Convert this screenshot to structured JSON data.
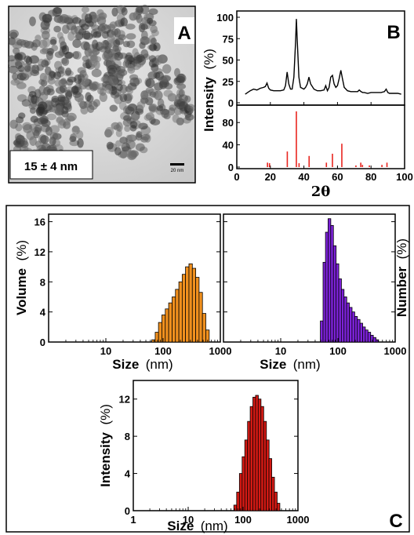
{
  "panel_labels": {
    "a": "A",
    "b": "B",
    "c": "C"
  },
  "tem": {
    "size_label": "15 ± 4 nm",
    "scalebar_label": "20 nm"
  },
  "chart_data": [
    {
      "id": "xrd",
      "type": "line",
      "xlabel": "2θ",
      "ylabel_main": "Intensity",
      "ylabel_unit": "(%)",
      "xlim": [
        0,
        100
      ],
      "xticks": [
        0,
        20,
        40,
        60,
        80,
        100
      ],
      "upper": {
        "ylim": [
          0,
          100
        ],
        "yticks": [
          0,
          25,
          50,
          75,
          100
        ],
        "x": [
          5,
          8,
          10,
          12,
          14,
          16,
          17,
          18,
          19,
          20,
          22,
          24,
          26,
          28,
          29,
          30,
          31,
          32,
          33,
          34,
          35,
          35.5,
          36,
          37,
          38,
          40,
          41,
          42,
          43,
          44,
          46,
          48,
          50,
          52,
          53,
          54,
          55,
          56,
          57,
          58,
          59,
          60,
          61,
          62,
          63,
          64,
          66,
          68,
          70,
          72,
          73,
          74,
          75,
          76,
          78,
          80,
          82,
          84,
          86,
          88,
          89,
          90,
          91,
          92,
          94,
          96,
          98
        ],
        "y": [
          10,
          14,
          16,
          15,
          17,
          18,
          19,
          23,
          17,
          15,
          14,
          14,
          14,
          15,
          20,
          36,
          22,
          16,
          16,
          30,
          70,
          98,
          75,
          30,
          18,
          16,
          18,
          22,
          30,
          22,
          16,
          14,
          14,
          15,
          20,
          14,
          18,
          30,
          32,
          22,
          18,
          20,
          28,
          38,
          28,
          18,
          14,
          13,
          13,
          13,
          15,
          13,
          12,
          12,
          11,
          12,
          12,
          12,
          12,
          13,
          16,
          12,
          11,
          11,
          11,
          11,
          10
        ]
      },
      "lower": {
        "ylim": [
          0,
          100
        ],
        "yticks": [
          0,
          40,
          80
        ],
        "peaks": [
          {
            "x": 18.3,
            "y": 8
          },
          {
            "x": 19.5,
            "y": 7
          },
          {
            "x": 30.1,
            "y": 28
          },
          {
            "x": 35.5,
            "y": 100
          },
          {
            "x": 37.1,
            "y": 7
          },
          {
            "x": 43.1,
            "y": 20
          },
          {
            "x": 53.4,
            "y": 8
          },
          {
            "x": 57.0,
            "y": 24
          },
          {
            "x": 62.6,
            "y": 42
          },
          {
            "x": 71.0,
            "y": 3
          },
          {
            "x": 73.9,
            "y": 8
          },
          {
            "x": 74.9,
            "y": 4
          },
          {
            "x": 79.0,
            "y": 3
          },
          {
            "x": 86.5,
            "y": 4
          },
          {
            "x": 89.5,
            "y": 8
          }
        ],
        "color": "#e8251f"
      }
    },
    {
      "id": "dls-volume",
      "type": "bar",
      "xscale": "log",
      "xlabel": "Size",
      "xlabel_unit": "(nm)",
      "ylabel": "Volume",
      "ylabel_unit": "(%)",
      "xlim": [
        1,
        1000
      ],
      "xticks": [
        10,
        100,
        1000
      ],
      "xtick_labels": [
        "10",
        "100",
        "1000"
      ],
      "ylim": [
        0,
        17
      ],
      "yticks": [
        0,
        4,
        8,
        12,
        16
      ],
      "color": "#f0901e",
      "bins": [
        {
          "x": 68,
          "y": 0.3
        },
        {
          "x": 78,
          "y": 1.3
        },
        {
          "x": 89,
          "y": 2.6
        },
        {
          "x": 102,
          "y": 3.6
        },
        {
          "x": 117,
          "y": 4.4
        },
        {
          "x": 134,
          "y": 5.2
        },
        {
          "x": 154,
          "y": 6.0
        },
        {
          "x": 176,
          "y": 7.0
        },
        {
          "x": 202,
          "y": 8.0
        },
        {
          "x": 231,
          "y": 9.0
        },
        {
          "x": 264,
          "y": 10.0
        },
        {
          "x": 303,
          "y": 10.4
        },
        {
          "x": 347,
          "y": 9.8
        },
        {
          "x": 397,
          "y": 8.6
        },
        {
          "x": 455,
          "y": 6.6
        },
        {
          "x": 521,
          "y": 3.8
        },
        {
          "x": 597,
          "y": 1.6
        }
      ]
    },
    {
      "id": "dls-number",
      "type": "bar",
      "xscale": "log",
      "xlabel": "Size",
      "xlabel_unit": "(nm)",
      "ylabel": "Number",
      "ylabel_unit": "(%)",
      "xlim": [
        1,
        1000
      ],
      "xticks": [
        10,
        100,
        1000
      ],
      "xtick_labels": [
        "10",
        "100",
        "1000"
      ],
      "ylim": [
        0,
        17
      ],
      "yticks": [
        0,
        4,
        8,
        12,
        16
      ],
      "color": "#7d22d9",
      "bins": [
        {
          "x": 52,
          "y": 2.8
        },
        {
          "x": 58,
          "y": 10.6
        },
        {
          "x": 64,
          "y": 14.6
        },
        {
          "x": 71,
          "y": 16.4
        },
        {
          "x": 79,
          "y": 15.5
        },
        {
          "x": 88,
          "y": 12.8
        },
        {
          "x": 98,
          "y": 10.4
        },
        {
          "x": 109,
          "y": 8.4
        },
        {
          "x": 121,
          "y": 7.0
        },
        {
          "x": 135,
          "y": 6.0
        },
        {
          "x": 150,
          "y": 5.2
        },
        {
          "x": 167,
          "y": 4.6
        },
        {
          "x": 186,
          "y": 4.0
        },
        {
          "x": 207,
          "y": 3.4
        },
        {
          "x": 230,
          "y": 3.0
        },
        {
          "x": 256,
          "y": 2.5
        },
        {
          "x": 285,
          "y": 2.0
        },
        {
          "x": 317,
          "y": 1.6
        },
        {
          "x": 353,
          "y": 1.3
        },
        {
          "x": 393,
          "y": 0.9
        },
        {
          "x": 437,
          "y": 0.6
        },
        {
          "x": 486,
          "y": 0.3
        }
      ]
    },
    {
      "id": "dls-intensity",
      "type": "bar",
      "xscale": "log",
      "xlabel": "Size",
      "xlabel_unit": "(nm)",
      "ylabel": "Intensity",
      "ylabel_unit": "(%)",
      "xlim": [
        1,
        1000
      ],
      "xticks": [
        1,
        10,
        100,
        1000
      ],
      "xtick_labels": [
        "1",
        "10",
        "100",
        "1000"
      ],
      "ylim": [
        0,
        14
      ],
      "yticks": [
        0,
        4,
        8,
        12
      ],
      "color": "#d41a14",
      "bins": [
        {
          "x": 72,
          "y": 0.6
        },
        {
          "x": 81,
          "y": 2.0
        },
        {
          "x": 91,
          "y": 4.0
        },
        {
          "x": 102,
          "y": 5.8
        },
        {
          "x": 114,
          "y": 7.6
        },
        {
          "x": 128,
          "y": 9.6
        },
        {
          "x": 143,
          "y": 11.2
        },
        {
          "x": 160,
          "y": 12.2
        },
        {
          "x": 179,
          "y": 12.4
        },
        {
          "x": 200,
          "y": 12.0
        },
        {
          "x": 224,
          "y": 11.2
        },
        {
          "x": 251,
          "y": 9.6
        },
        {
          "x": 281,
          "y": 7.6
        },
        {
          "x": 314,
          "y": 5.6
        },
        {
          "x": 352,
          "y": 3.6
        },
        {
          "x": 394,
          "y": 2.0
        },
        {
          "x": 441,
          "y": 0.8
        }
      ]
    }
  ]
}
